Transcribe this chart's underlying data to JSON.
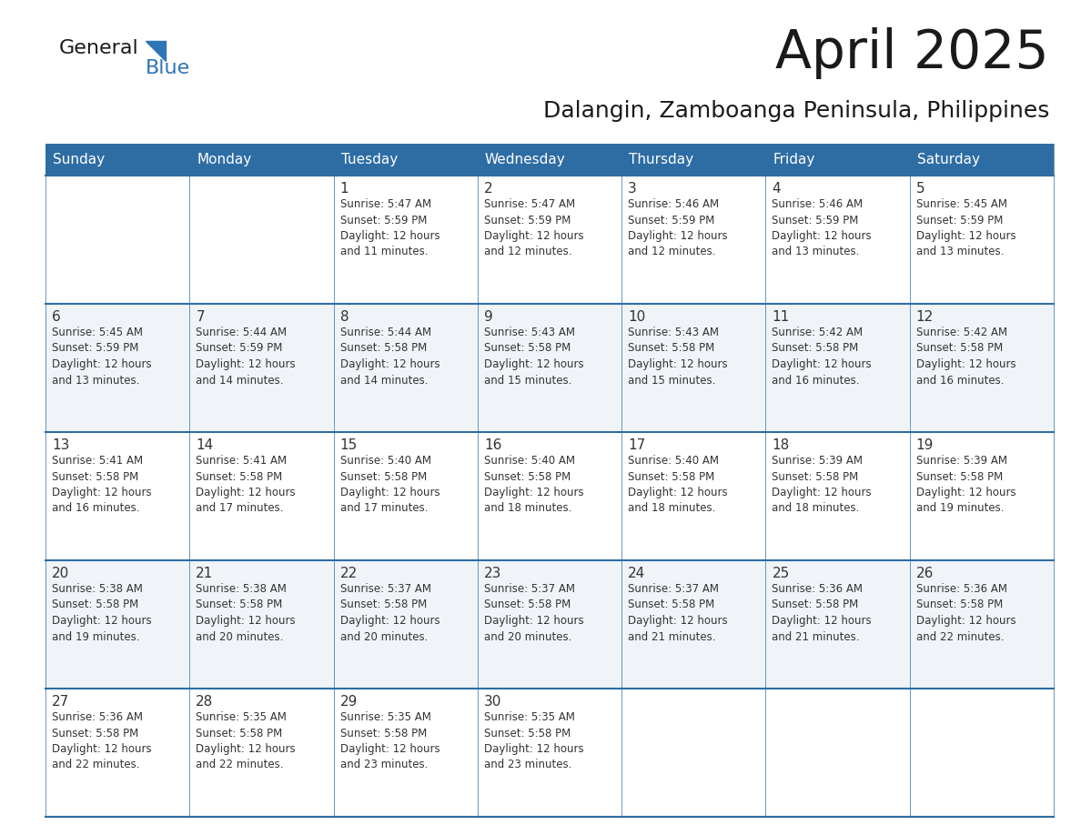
{
  "title": "April 2025",
  "subtitle": "Dalangin, Zamboanga Peninsula, Philippines",
  "header_bg_color": "#2E6DA4",
  "header_text_color": "#FFFFFF",
  "cell_bg_color": "#FFFFFF",
  "cell_alt_bg_color": "#F0F4F8",
  "text_color": "#333333",
  "border_color": "#2E6DA4",
  "days_of_week": [
    "Sunday",
    "Monday",
    "Tuesday",
    "Wednesday",
    "Thursday",
    "Friday",
    "Saturday"
  ],
  "weeks": [
    [
      {
        "day": "",
        "info": ""
      },
      {
        "day": "",
        "info": ""
      },
      {
        "day": "1",
        "info": "Sunrise: 5:47 AM\nSunset: 5:59 PM\nDaylight: 12 hours\nand 11 minutes."
      },
      {
        "day": "2",
        "info": "Sunrise: 5:47 AM\nSunset: 5:59 PM\nDaylight: 12 hours\nand 12 minutes."
      },
      {
        "day": "3",
        "info": "Sunrise: 5:46 AM\nSunset: 5:59 PM\nDaylight: 12 hours\nand 12 minutes."
      },
      {
        "day": "4",
        "info": "Sunrise: 5:46 AM\nSunset: 5:59 PM\nDaylight: 12 hours\nand 13 minutes."
      },
      {
        "day": "5",
        "info": "Sunrise: 5:45 AM\nSunset: 5:59 PM\nDaylight: 12 hours\nand 13 minutes."
      }
    ],
    [
      {
        "day": "6",
        "info": "Sunrise: 5:45 AM\nSunset: 5:59 PM\nDaylight: 12 hours\nand 13 minutes."
      },
      {
        "day": "7",
        "info": "Sunrise: 5:44 AM\nSunset: 5:59 PM\nDaylight: 12 hours\nand 14 minutes."
      },
      {
        "day": "8",
        "info": "Sunrise: 5:44 AM\nSunset: 5:58 PM\nDaylight: 12 hours\nand 14 minutes."
      },
      {
        "day": "9",
        "info": "Sunrise: 5:43 AM\nSunset: 5:58 PM\nDaylight: 12 hours\nand 15 minutes."
      },
      {
        "day": "10",
        "info": "Sunrise: 5:43 AM\nSunset: 5:58 PM\nDaylight: 12 hours\nand 15 minutes."
      },
      {
        "day": "11",
        "info": "Sunrise: 5:42 AM\nSunset: 5:58 PM\nDaylight: 12 hours\nand 16 minutes."
      },
      {
        "day": "12",
        "info": "Sunrise: 5:42 AM\nSunset: 5:58 PM\nDaylight: 12 hours\nand 16 minutes."
      }
    ],
    [
      {
        "day": "13",
        "info": "Sunrise: 5:41 AM\nSunset: 5:58 PM\nDaylight: 12 hours\nand 16 minutes."
      },
      {
        "day": "14",
        "info": "Sunrise: 5:41 AM\nSunset: 5:58 PM\nDaylight: 12 hours\nand 17 minutes."
      },
      {
        "day": "15",
        "info": "Sunrise: 5:40 AM\nSunset: 5:58 PM\nDaylight: 12 hours\nand 17 minutes."
      },
      {
        "day": "16",
        "info": "Sunrise: 5:40 AM\nSunset: 5:58 PM\nDaylight: 12 hours\nand 18 minutes."
      },
      {
        "day": "17",
        "info": "Sunrise: 5:40 AM\nSunset: 5:58 PM\nDaylight: 12 hours\nand 18 minutes."
      },
      {
        "day": "18",
        "info": "Sunrise: 5:39 AM\nSunset: 5:58 PM\nDaylight: 12 hours\nand 18 minutes."
      },
      {
        "day": "19",
        "info": "Sunrise: 5:39 AM\nSunset: 5:58 PM\nDaylight: 12 hours\nand 19 minutes."
      }
    ],
    [
      {
        "day": "20",
        "info": "Sunrise: 5:38 AM\nSunset: 5:58 PM\nDaylight: 12 hours\nand 19 minutes."
      },
      {
        "day": "21",
        "info": "Sunrise: 5:38 AM\nSunset: 5:58 PM\nDaylight: 12 hours\nand 20 minutes."
      },
      {
        "day": "22",
        "info": "Sunrise: 5:37 AM\nSunset: 5:58 PM\nDaylight: 12 hours\nand 20 minutes."
      },
      {
        "day": "23",
        "info": "Sunrise: 5:37 AM\nSunset: 5:58 PM\nDaylight: 12 hours\nand 20 minutes."
      },
      {
        "day": "24",
        "info": "Sunrise: 5:37 AM\nSunset: 5:58 PM\nDaylight: 12 hours\nand 21 minutes."
      },
      {
        "day": "25",
        "info": "Sunrise: 5:36 AM\nSunset: 5:58 PM\nDaylight: 12 hours\nand 21 minutes."
      },
      {
        "day": "26",
        "info": "Sunrise: 5:36 AM\nSunset: 5:58 PM\nDaylight: 12 hours\nand 22 minutes."
      }
    ],
    [
      {
        "day": "27",
        "info": "Sunrise: 5:36 AM\nSunset: 5:58 PM\nDaylight: 12 hours\nand 22 minutes."
      },
      {
        "day": "28",
        "info": "Sunrise: 5:35 AM\nSunset: 5:58 PM\nDaylight: 12 hours\nand 22 minutes."
      },
      {
        "day": "29",
        "info": "Sunrise: 5:35 AM\nSunset: 5:58 PM\nDaylight: 12 hours\nand 23 minutes."
      },
      {
        "day": "30",
        "info": "Sunrise: 5:35 AM\nSunset: 5:58 PM\nDaylight: 12 hours\nand 23 minutes."
      },
      {
        "day": "",
        "info": ""
      },
      {
        "day": "",
        "info": ""
      },
      {
        "day": "",
        "info": ""
      }
    ]
  ],
  "logo_color_general": "#1a1a1a",
  "logo_color_blue": "#2E75B6",
  "logo_triangle_color": "#2E75B6",
  "figwidth": 11.88,
  "figheight": 9.18,
  "dpi": 100
}
